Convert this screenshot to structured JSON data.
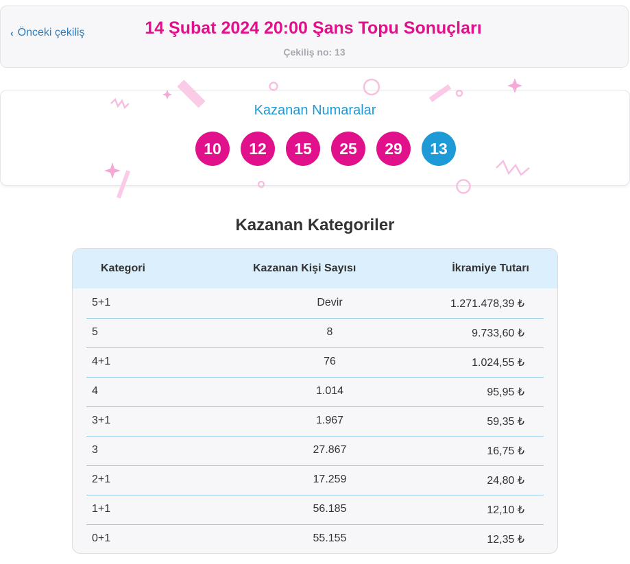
{
  "header": {
    "prev_label": "Önceki çekiliş",
    "title": "14 Şubat 2024 20:00 Şans Topu Sonuçları",
    "subtitle": "Çekiliş no: 13"
  },
  "winning_numbers": {
    "title": "Kazanan Numaralar",
    "main": [
      "10",
      "12",
      "15",
      "25",
      "29"
    ],
    "bonus": "13"
  },
  "categories": {
    "title": "Kazanan Kategoriler",
    "columns": [
      "Kategori",
      "Kazanan Kişi Sayısı",
      "İkramiye Tutarı"
    ],
    "rows": [
      {
        "kategori": "5+1",
        "kisi": "Devir",
        "tutar": "1.271.478,39 ₺"
      },
      {
        "kategori": "5",
        "kisi": "8",
        "tutar": "9.733,60 ₺"
      },
      {
        "kategori": "4+1",
        "kisi": "76",
        "tutar": "1.024,55 ₺"
      },
      {
        "kategori": "4",
        "kisi": "1.014",
        "tutar": "95,95 ₺"
      },
      {
        "kategori": "3+1",
        "kisi": "1.967",
        "tutar": "59,35 ₺"
      },
      {
        "kategori": "3",
        "kisi": "27.867",
        "tutar": "16,75 ₺"
      },
      {
        "kategori": "2+1",
        "kisi": "17.259",
        "tutar": "24,80 ₺"
      },
      {
        "kategori": "1+1",
        "kisi": "56.185",
        "tutar": "12,10 ₺"
      },
      {
        "kategori": "0+1",
        "kisi": "55.155",
        "tutar": "12,35 ₺"
      }
    ]
  },
  "colors": {
    "accent_pink": "#e0118a",
    "accent_blue": "#1e9ad6",
    "table_header": "#dbeffc"
  }
}
